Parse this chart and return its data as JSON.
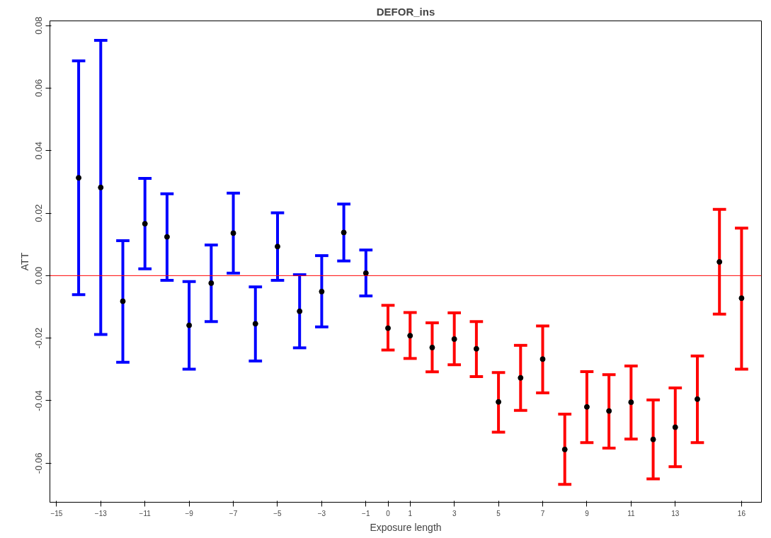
{
  "chart_data": {
    "type": "scatter",
    "title": "DEFOR_ins",
    "xlabel": "Exposure length",
    "ylabel": "ATT",
    "marker": "circle",
    "grid": false,
    "xlim": [
      -15.3,
      16.9
    ],
    "xticks": [
      -15,
      -13,
      -11,
      -9,
      -7,
      -5,
      -3,
      -1,
      0,
      1,
      3,
      5,
      7,
      9,
      11,
      13,
      16
    ],
    "ylim": [
      -0.0725,
      0.0815
    ],
    "yticks": [
      {
        "value": -0.06,
        "label": "-0.06"
      },
      {
        "value": -0.04,
        "label": "-0.04"
      },
      {
        "value": -0.02,
        "label": "-0.02"
      },
      {
        "value": 0.0,
        "label": "0.00"
      },
      {
        "value": 0.02,
        "label": "0.02"
      },
      {
        "value": 0.04,
        "label": "0.04"
      },
      {
        "value": 0.06,
        "label": "0.06"
      },
      {
        "value": 0.08,
        "label": "0.08"
      }
    ],
    "ref_lines": [
      {
        "axis": "y",
        "value": 0,
        "label": null,
        "color": "#ff0000"
      }
    ],
    "series": [
      {
        "color": "#0000ff",
        "colors": [
          "#000000",
          "#000000",
          "#000000",
          "#000000",
          "#000000",
          "#000000",
          "#000000",
          "#000000",
          "#000000",
          "#000000",
          "#000000",
          "#000000",
          "#000000",
          "#000000"
        ],
        "x": [
          -14,
          -13,
          -12,
          -11,
          -10,
          -9,
          -8,
          -7,
          -6,
          -5,
          -4,
          -3,
          -2,
          -1
        ],
        "values": [
          0.0313,
          0.0282,
          -0.0082,
          0.0166,
          0.0124,
          -0.0159,
          -0.0024,
          0.0136,
          -0.0154,
          0.0093,
          -0.0114,
          -0.0051,
          0.0138,
          0.0008
        ],
        "errors": [
          [
            -0.0061,
            0.0687
          ],
          [
            -0.0188,
            0.0753
          ],
          [
            -0.0277,
            0.0112
          ],
          [
            0.0022,
            0.0311
          ],
          [
            -0.0015,
            0.0262
          ],
          [
            -0.0299,
            -0.0019
          ],
          [
            -0.0147,
            0.0098
          ],
          [
            0.0008,
            0.0264
          ],
          [
            -0.0273,
            -0.0036
          ],
          [
            -0.0015,
            0.0201
          ],
          [
            -0.0231,
            0.0003
          ],
          [
            -0.0164,
            0.0064
          ],
          [
            0.0047,
            0.0229
          ],
          [
            -0.0065,
            0.0082
          ]
        ]
      },
      {
        "color": "#ff0000",
        "colors": [
          "#000000",
          "#000000",
          "#000000",
          "#000000",
          "#000000",
          "#000000",
          "#000000",
          "#000000",
          "#000000",
          "#000000",
          "#000000",
          "#000000",
          "#000000",
          "#000000",
          "#000000",
          "#000000",
          "#000000"
        ],
        "x": [
          0,
          1,
          2,
          3,
          4,
          5,
          6,
          7,
          8,
          9,
          10,
          11,
          12,
          13,
          14,
          15,
          16
        ],
        "values": [
          -0.0168,
          -0.0192,
          -0.023,
          -0.0203,
          -0.0234,
          -0.0404,
          -0.0327,
          -0.0267,
          -0.0556,
          -0.042,
          -0.0433,
          -0.0405,
          -0.0524,
          -0.0485,
          -0.0395,
          0.0044,
          -0.0072
        ],
        "errors": [
          [
            -0.0238,
            -0.0095
          ],
          [
            -0.0265,
            -0.0118
          ],
          [
            -0.0308,
            -0.0151
          ],
          [
            -0.0285,
            -0.0119
          ],
          [
            -0.0323,
            -0.0147
          ],
          [
            -0.0501,
            -0.031
          ],
          [
            -0.0431,
            -0.0223
          ],
          [
            -0.0375,
            -0.0161
          ],
          [
            -0.0668,
            -0.0443
          ],
          [
            -0.0534,
            -0.0307
          ],
          [
            -0.0552,
            -0.0317
          ],
          [
            -0.0523,
            -0.0289
          ],
          [
            -0.065,
            -0.0398
          ],
          [
            -0.0611,
            -0.0359
          ],
          [
            -0.0534,
            -0.0257
          ],
          [
            -0.0123,
            0.0212
          ],
          [
            -0.0299,
            0.0152
          ]
        ]
      }
    ]
  }
}
